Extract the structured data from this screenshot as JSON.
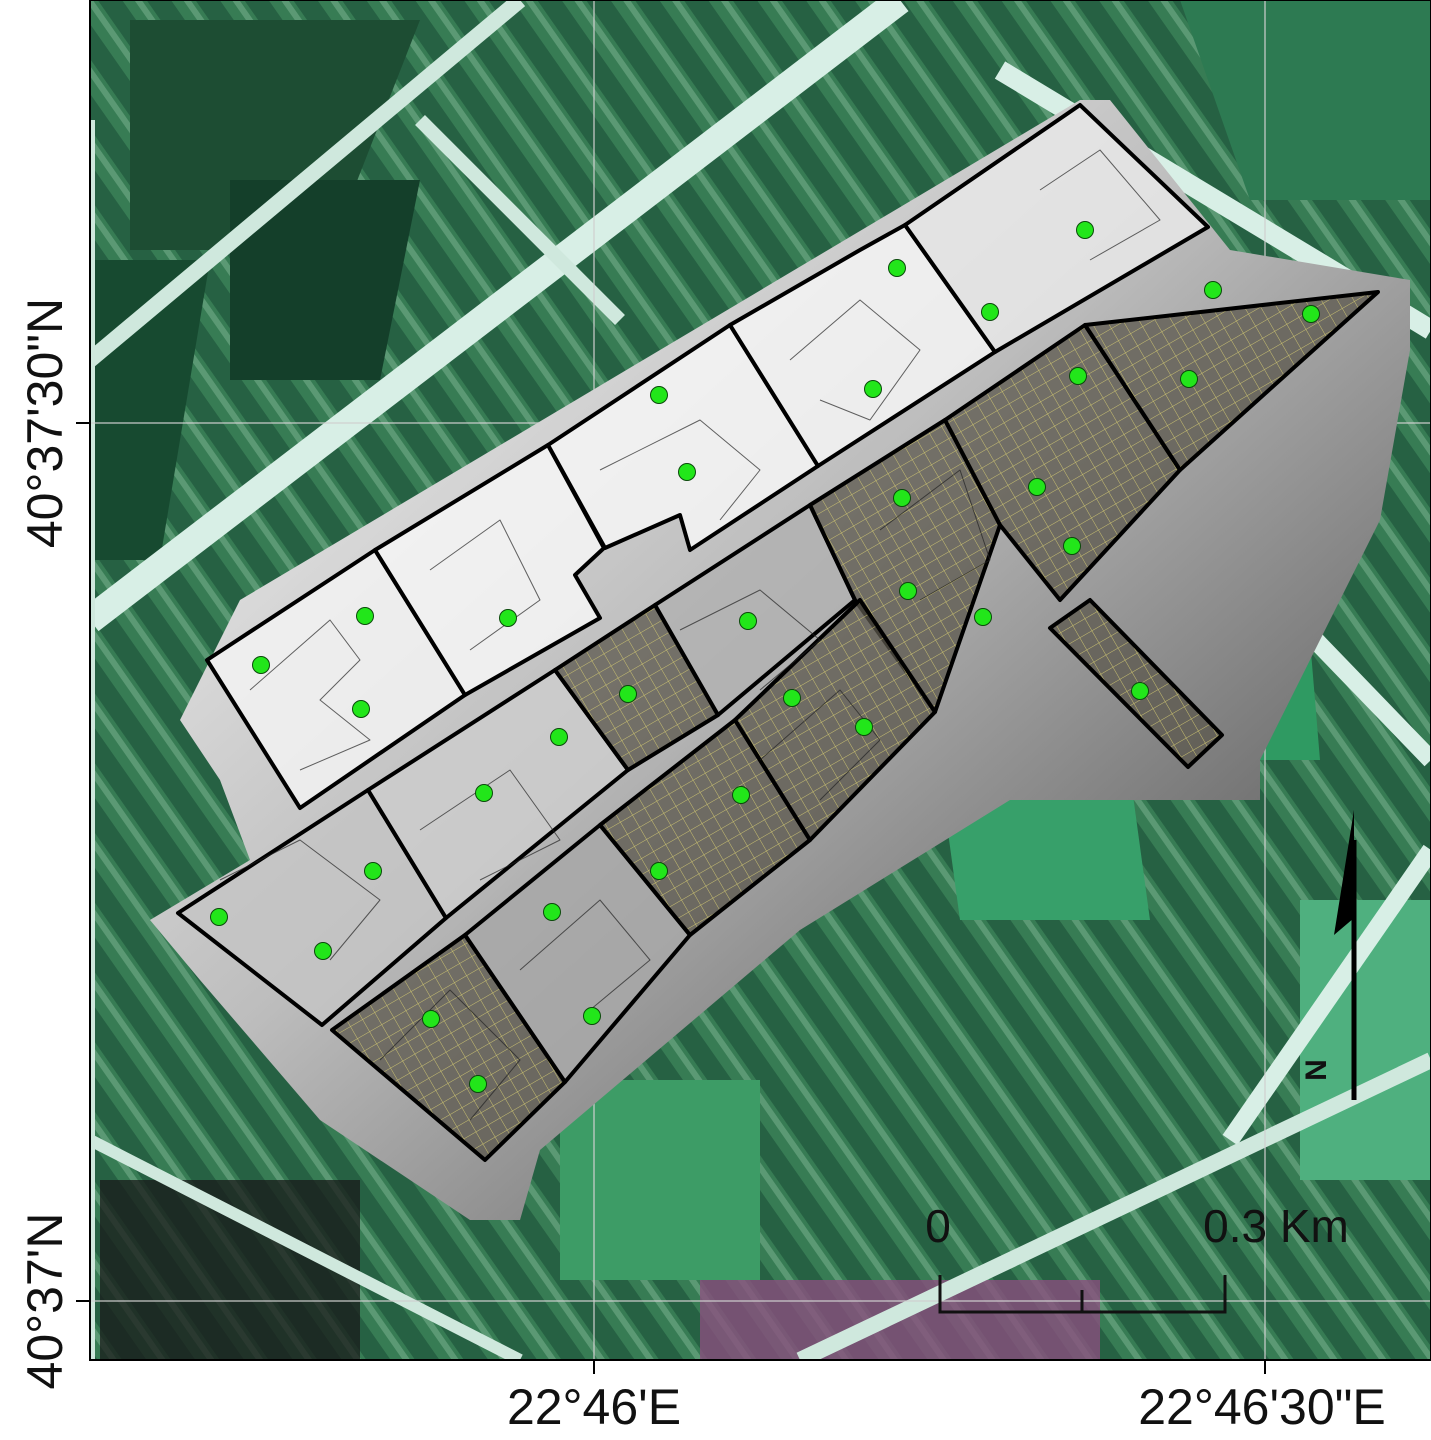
{
  "map": {
    "latitude_labels": [
      "40°37'30\"N",
      "40°37'N"
    ],
    "longitude_labels": [
      "22°46'E",
      "22°46'30\"E"
    ],
    "scale_bar": {
      "start_label": "0",
      "end_label": "0.3 Km"
    },
    "north_arrow": {
      "label": "N"
    },
    "colors": {
      "sample_point": "#22e61a",
      "parcel_outline": "#000000",
      "hatch": "#c9c070",
      "field_green": "#3f8f5c",
      "road": "#d8efe6"
    }
  }
}
